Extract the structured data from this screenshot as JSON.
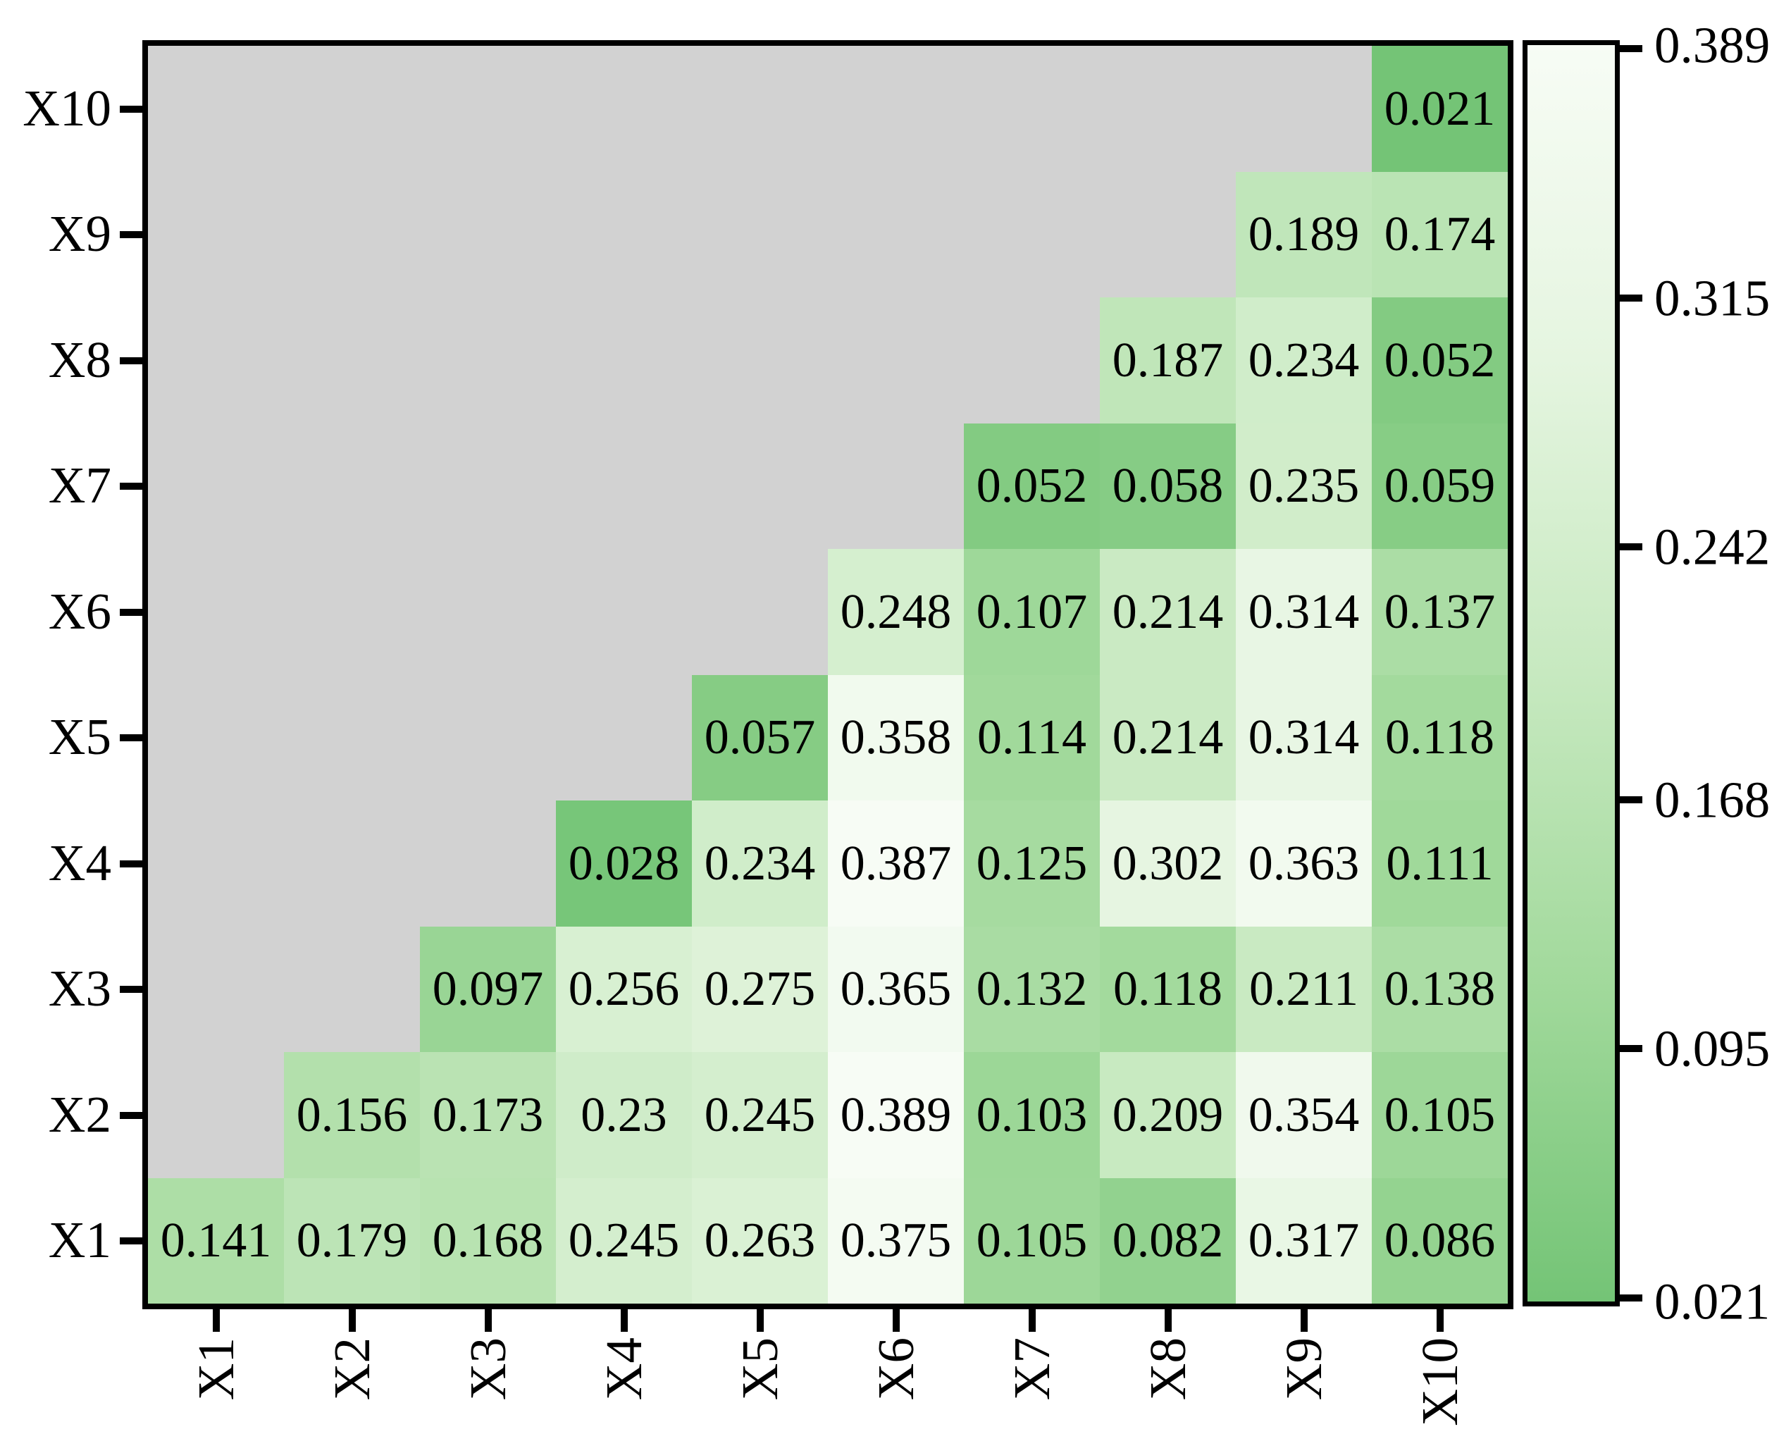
{
  "chart_data": {
    "type": "heatmap",
    "title": "",
    "xlabel": "",
    "ylabel": "",
    "x_categories": [
      "X1",
      "X2",
      "X3",
      "X4",
      "X5",
      "X6",
      "X7",
      "X8",
      "X9",
      "X10"
    ],
    "y_categories_top_to_bottom": [
      "X10",
      "X9",
      "X8",
      "X7",
      "X6",
      "X5",
      "X4",
      "X3",
      "X2",
      "X1"
    ],
    "matrix_rows_top_to_bottom": [
      [
        null,
        null,
        null,
        null,
        null,
        null,
        null,
        null,
        null,
        0.021
      ],
      [
        null,
        null,
        null,
        null,
        null,
        null,
        null,
        null,
        0.189,
        0.174
      ],
      [
        null,
        null,
        null,
        null,
        null,
        null,
        null,
        0.187,
        0.234,
        0.052
      ],
      [
        null,
        null,
        null,
        null,
        null,
        null,
        0.052,
        0.058,
        0.235,
        0.059
      ],
      [
        null,
        null,
        null,
        null,
        null,
        0.248,
        0.107,
        0.214,
        0.314,
        0.137
      ],
      [
        null,
        null,
        null,
        null,
        0.057,
        0.358,
        0.114,
        0.214,
        0.314,
        0.118
      ],
      [
        null,
        null,
        null,
        0.028,
        0.234,
        0.387,
        0.125,
        0.302,
        0.363,
        0.111
      ],
      [
        null,
        null,
        0.097,
        0.256,
        0.275,
        0.365,
        0.132,
        0.118,
        0.211,
        0.138
      ],
      [
        null,
        0.156,
        0.173,
        0.23,
        0.245,
        0.389,
        0.103,
        0.209,
        0.354,
        0.105
      ],
      [
        0.141,
        0.179,
        0.168,
        0.245,
        0.263,
        0.375,
        0.105,
        0.082,
        0.317,
        0.086
      ]
    ],
    "masked_region": "upper-left triangle above the diagonal, shown in gray",
    "annotations_shown": true,
    "grid": false,
    "colorbar": {
      "position": "right",
      "vmin": 0.021,
      "vmax": 0.389,
      "tick_labels_top_to_bottom": [
        "0.389",
        "0.315",
        "0.242",
        "0.168",
        "0.095",
        "0.021"
      ],
      "tick_values_top_to_bottom": [
        0.389,
        0.315,
        0.242,
        0.168,
        0.095,
        0.021
      ]
    },
    "colormap": {
      "description": "reversed truncated Greens: low values dark green, high values near white",
      "stops_light_to_dark": [
        "#f7fcf5",
        "#e5f5e0",
        "#c7e9c0",
        "#a1d99b",
        "#74c476"
      ],
      "mask_color": "#d2d2d2",
      "value_text_color": "#000000"
    }
  }
}
